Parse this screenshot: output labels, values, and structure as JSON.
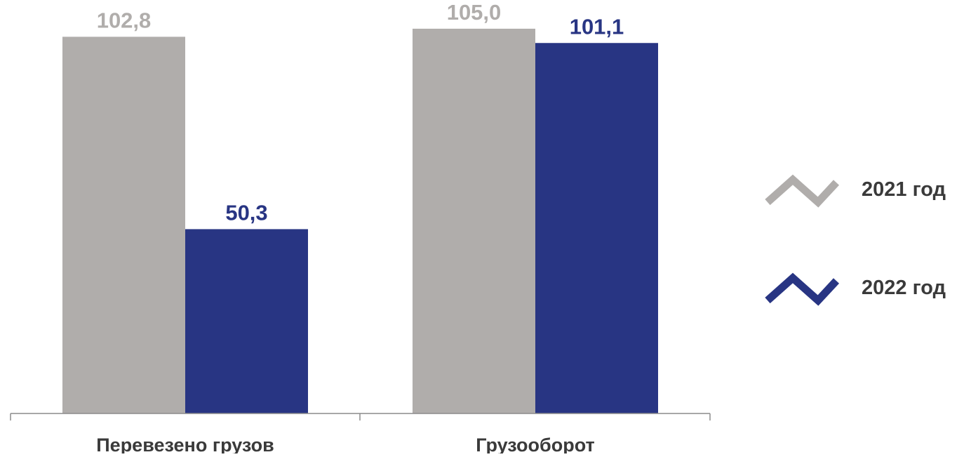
{
  "chart_data": {
    "type": "bar",
    "categories": [
      "Перевезено грузов",
      "Грузооборот"
    ],
    "series": [
      {
        "name": "2021 год",
        "values": [
          102.8,
          105.0
        ],
        "labels": [
          "102,8",
          "105,0"
        ],
        "color": "#b0adab",
        "label_color": "#b0adab"
      },
      {
        "name": "2022 год",
        "values": [
          50.3,
          101.1
        ],
        "labels": [
          "50,3",
          "101,1"
        ],
        "color": "#283583",
        "label_color": "#283583"
      }
    ],
    "ylim": [
      0,
      110
    ],
    "grid": false,
    "legend_position": "right",
    "axis_color": "#8c8c8c",
    "category_label_color": "#3a3a3a"
  }
}
